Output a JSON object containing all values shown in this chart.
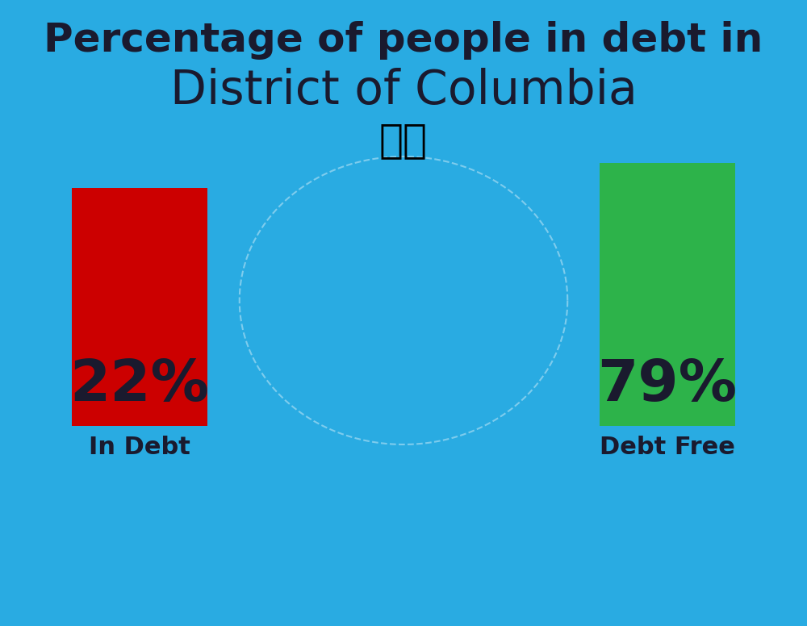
{
  "title_line1": "Percentage of people in debt in",
  "title_line2": "District of Columbia",
  "background_color": "#29ABE2",
  "bar_left_value": "22%",
  "bar_right_value": "79%",
  "bar_left_label": "In Debt",
  "bar_right_label": "Debt Free",
  "bar_left_color": "#CC0000",
  "bar_right_color": "#2DB34A",
  "bar_text_color": "#1a1a2e",
  "title_color1": "#1a1a2e",
  "title_color2": "#1a1a2e",
  "label_color": "#1a1a2e",
  "flag_emoji": "🇺🇸",
  "title_fontsize1": 36,
  "title_fontsize2": 42,
  "bar_value_fontsize": 52,
  "bar_label_fontsize": 22
}
